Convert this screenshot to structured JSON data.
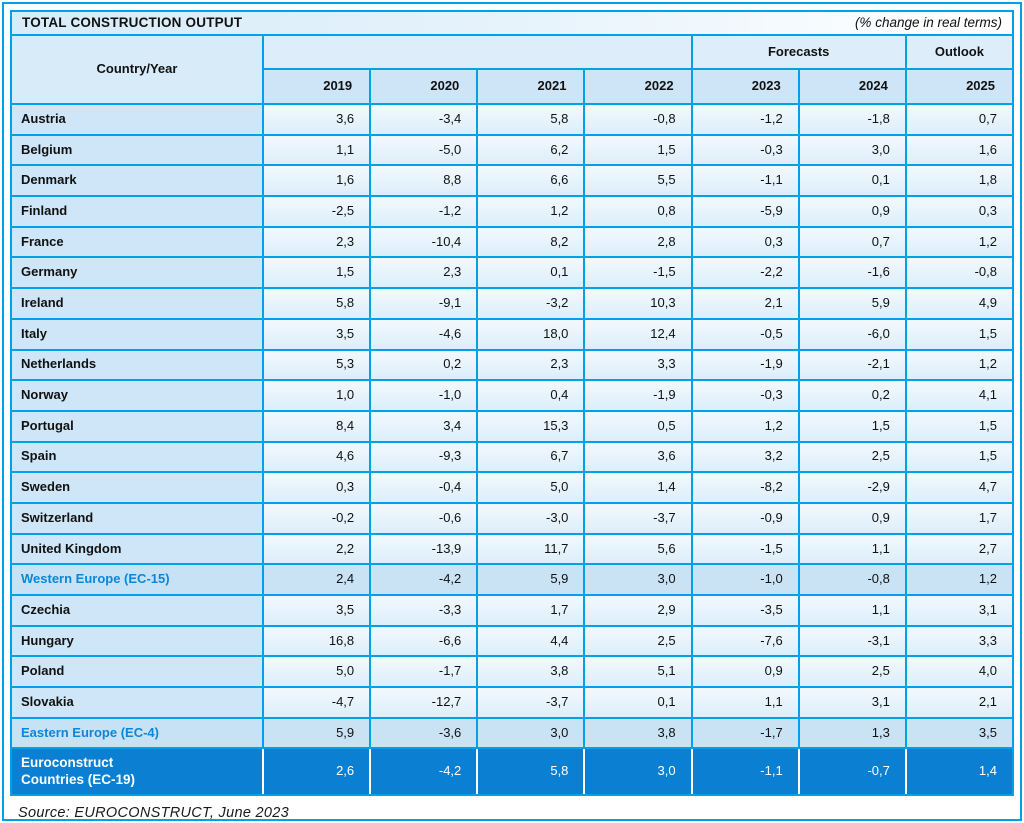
{
  "title": "TOTAL CONSTRUCTION OUTPUT",
  "subtitle": "(% change in real terms)",
  "header": {
    "country_year": "Country/Year",
    "forecasts_label": "Forecasts",
    "outlook_label": "Outlook",
    "years": [
      "2019",
      "2020",
      "2021",
      "2022",
      "2023",
      "2024",
      "2025"
    ]
  },
  "rows": [
    {
      "type": "country",
      "label": "Austria",
      "values": [
        "3,6",
        "-3,4",
        "5,8",
        "-0,8",
        "-1,2",
        "-1,8",
        "0,7"
      ]
    },
    {
      "type": "country",
      "label": "Belgium",
      "values": [
        "1,1",
        "-5,0",
        "6,2",
        "1,5",
        "-0,3",
        "3,0",
        "1,6"
      ]
    },
    {
      "type": "country",
      "label": "Denmark",
      "values": [
        "1,6",
        "8,8",
        "6,6",
        "5,5",
        "-1,1",
        "0,1",
        "1,8"
      ]
    },
    {
      "type": "country",
      "label": "Finland",
      "values": [
        "-2,5",
        "-1,2",
        "1,2",
        "0,8",
        "-5,9",
        "0,9",
        "0,3"
      ]
    },
    {
      "type": "country",
      "label": "France",
      "values": [
        "2,3",
        "-10,4",
        "8,2",
        "2,8",
        "0,3",
        "0,7",
        "1,2"
      ]
    },
    {
      "type": "country",
      "label": "Germany",
      "values": [
        "1,5",
        "2,3",
        "0,1",
        "-1,5",
        "-2,2",
        "-1,6",
        "-0,8"
      ]
    },
    {
      "type": "country",
      "label": "Ireland",
      "values": [
        "5,8",
        "-9,1",
        "-3,2",
        "10,3",
        "2,1",
        "5,9",
        "4,9"
      ]
    },
    {
      "type": "country",
      "label": "Italy",
      "values": [
        "3,5",
        "-4,6",
        "18,0",
        "12,4",
        "-0,5",
        "-6,0",
        "1,5"
      ]
    },
    {
      "type": "country",
      "label": "Netherlands",
      "values": [
        "5,3",
        "0,2",
        "2,3",
        "3,3",
        "-1,9",
        "-2,1",
        "1,2"
      ]
    },
    {
      "type": "country",
      "label": "Norway",
      "values": [
        "1,0",
        "-1,0",
        "0,4",
        "-1,9",
        "-0,3",
        "0,2",
        "4,1"
      ]
    },
    {
      "type": "country",
      "label": "Portugal",
      "values": [
        "8,4",
        "3,4",
        "15,3",
        "0,5",
        "1,2",
        "1,5",
        "1,5"
      ]
    },
    {
      "type": "country",
      "label": "Spain",
      "values": [
        "4,6",
        "-9,3",
        "6,7",
        "3,6",
        "3,2",
        "2,5",
        "1,5"
      ]
    },
    {
      "type": "country",
      "label": "Sweden",
      "values": [
        "0,3",
        "-0,4",
        "5,0",
        "1,4",
        "-8,2",
        "-2,9",
        "4,7"
      ]
    },
    {
      "type": "country",
      "label": "Switzerland",
      "values": [
        "-0,2",
        "-0,6",
        "-3,0",
        "-3,7",
        "-0,9",
        "0,9",
        "1,7"
      ]
    },
    {
      "type": "country",
      "label": "United Kingdom",
      "values": [
        "2,2",
        "-13,9",
        "11,7",
        "5,6",
        "-1,5",
        "1,1",
        "2,7"
      ]
    },
    {
      "type": "summary",
      "label": "Western Europe (EC-15)",
      "values": [
        "2,4",
        "-4,2",
        "5,9",
        "3,0",
        "-1,0",
        "-0,8",
        "1,2"
      ]
    },
    {
      "type": "country",
      "label": "Czechia",
      "values": [
        "3,5",
        "-3,3",
        "1,7",
        "2,9",
        "-3,5",
        "1,1",
        "3,1"
      ]
    },
    {
      "type": "country",
      "label": "Hungary",
      "values": [
        "16,8",
        "-6,6",
        "4,4",
        "2,5",
        "-7,6",
        "-3,1",
        "3,3"
      ]
    },
    {
      "type": "country",
      "label": "Poland",
      "values": [
        "5,0",
        "-1,7",
        "3,8",
        "5,1",
        "0,9",
        "2,5",
        "4,0"
      ]
    },
    {
      "type": "country",
      "label": "Slovakia",
      "values": [
        "-4,7",
        "-12,7",
        "-3,7",
        "0,1",
        "1,1",
        "3,1",
        "2,1"
      ]
    },
    {
      "type": "summary",
      "label": "Eastern Europe (EC-4)",
      "values": [
        "5,9",
        "-3,6",
        "3,0",
        "3,8",
        "-1,7",
        "1,3",
        "3,5"
      ]
    },
    {
      "type": "total",
      "label": "Euroconstruct\nCountries (EC-19)",
      "values": [
        "2,6",
        "-4,2",
        "5,8",
        "3,0",
        "-1,1",
        "-0,7",
        "1,4"
      ]
    }
  ],
  "source": "Source: EUROCONSTRUCT, June 2023",
  "colors": {
    "border_blue": "#00A1E7",
    "label_cell_bg": "#CEE6F7",
    "value_cell_bg": "#E7F3FB",
    "header_cell_bg": "#CDE5F6",
    "summary_row_bg": "#C9E3F5",
    "summary_text": "#0B86DA",
    "total_row_bg": "#0B80D2",
    "total_row_text": "#FFFFFF"
  },
  "chart_data": {
    "type": "table",
    "title": "TOTAL CONSTRUCTION OUTPUT",
    "units": "% change in real terms",
    "column_groups": {
      "forecasts": [
        "2023",
        "2024"
      ],
      "outlook": [
        "2025"
      ]
    },
    "columns": [
      "2019",
      "2020",
      "2021",
      "2022",
      "2023",
      "2024",
      "2025"
    ],
    "rows": [
      {
        "label": "Austria",
        "values": [
          3.6,
          -3.4,
          5.8,
          -0.8,
          -1.2,
          -1.8,
          0.7
        ]
      },
      {
        "label": "Belgium",
        "values": [
          1.1,
          -5.0,
          6.2,
          1.5,
          -0.3,
          3.0,
          1.6
        ]
      },
      {
        "label": "Denmark",
        "values": [
          1.6,
          8.8,
          6.6,
          5.5,
          -1.1,
          0.1,
          1.8
        ]
      },
      {
        "label": "Finland",
        "values": [
          -2.5,
          -1.2,
          1.2,
          0.8,
          -5.9,
          0.9,
          0.3
        ]
      },
      {
        "label": "France",
        "values": [
          2.3,
          -10.4,
          8.2,
          2.8,
          0.3,
          0.7,
          1.2
        ]
      },
      {
        "label": "Germany",
        "values": [
          1.5,
          2.3,
          0.1,
          -1.5,
          -2.2,
          -1.6,
          -0.8
        ]
      },
      {
        "label": "Ireland",
        "values": [
          5.8,
          -9.1,
          -3.2,
          10.3,
          2.1,
          5.9,
          4.9
        ]
      },
      {
        "label": "Italy",
        "values": [
          3.5,
          -4.6,
          18.0,
          12.4,
          -0.5,
          -6.0,
          1.5
        ]
      },
      {
        "label": "Netherlands",
        "values": [
          5.3,
          0.2,
          2.3,
          3.3,
          -1.9,
          -2.1,
          1.2
        ]
      },
      {
        "label": "Norway",
        "values": [
          1.0,
          -1.0,
          0.4,
          -1.9,
          -0.3,
          0.2,
          4.1
        ]
      },
      {
        "label": "Portugal",
        "values": [
          8.4,
          3.4,
          15.3,
          0.5,
          1.2,
          1.5,
          1.5
        ]
      },
      {
        "label": "Spain",
        "values": [
          4.6,
          -9.3,
          6.7,
          3.6,
          3.2,
          2.5,
          1.5
        ]
      },
      {
        "label": "Sweden",
        "values": [
          0.3,
          -0.4,
          5.0,
          1.4,
          -8.2,
          -2.9,
          4.7
        ]
      },
      {
        "label": "Switzerland",
        "values": [
          -0.2,
          -0.6,
          -3.0,
          -3.7,
          -0.9,
          0.9,
          1.7
        ]
      },
      {
        "label": "United Kingdom",
        "values": [
          2.2,
          -13.9,
          11.7,
          5.6,
          -1.5,
          1.1,
          2.7
        ]
      },
      {
        "label": "Western Europe (EC-15)",
        "values": [
          2.4,
          -4.2,
          5.9,
          3.0,
          -1.0,
          -0.8,
          1.2
        ]
      },
      {
        "label": "Czechia",
        "values": [
          3.5,
          -3.3,
          1.7,
          2.9,
          -3.5,
          1.1,
          3.1
        ]
      },
      {
        "label": "Hungary",
        "values": [
          16.8,
          -6.6,
          4.4,
          2.5,
          -7.6,
          -3.1,
          3.3
        ]
      },
      {
        "label": "Poland",
        "values": [
          5.0,
          -1.7,
          3.8,
          5.1,
          0.9,
          2.5,
          4.0
        ]
      },
      {
        "label": "Slovakia",
        "values": [
          -4.7,
          -12.7,
          -3.7,
          0.1,
          1.1,
          3.1,
          2.1
        ]
      },
      {
        "label": "Eastern Europe (EC-4)",
        "values": [
          5.9,
          -3.6,
          3.0,
          3.8,
          -1.7,
          1.3,
          3.5
        ]
      },
      {
        "label": "Euroconstruct Countries (EC-19)",
        "values": [
          2.6,
          -4.2,
          5.8,
          3.0,
          -1.1,
          -0.7,
          1.4
        ]
      }
    ],
    "source": "Source: EUROCONSTRUCT, June 2023"
  }
}
